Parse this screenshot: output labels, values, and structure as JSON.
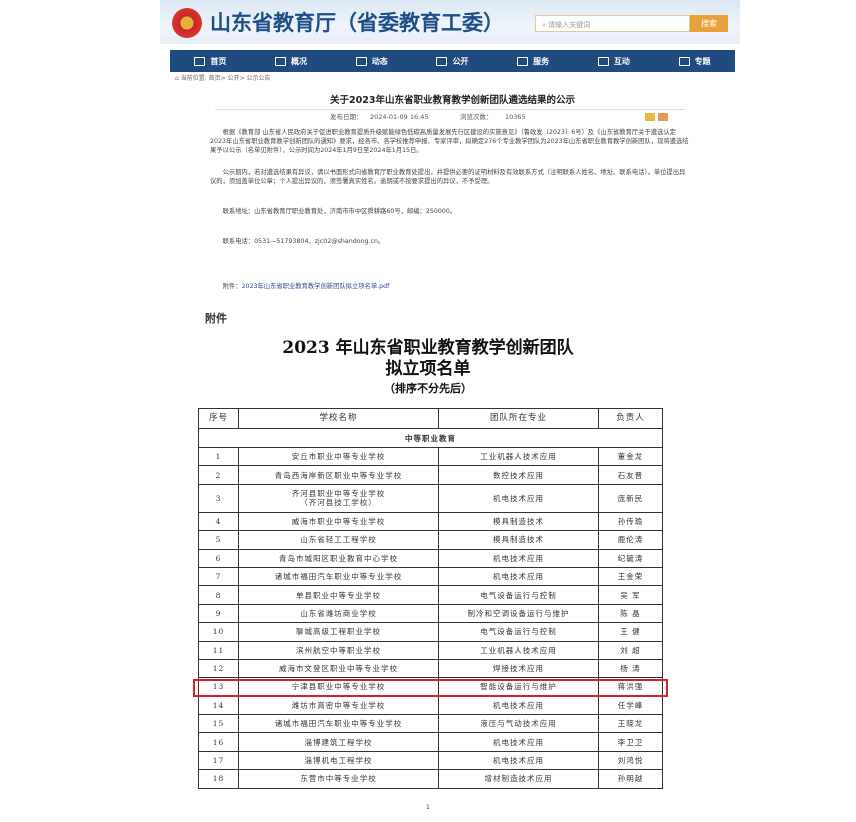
{
  "header": {
    "site_title": "山东省教育厅（省委教育工委）",
    "search_placeholder": "请输入关键词",
    "search_button": "搜索"
  },
  "nav": [
    {
      "label": "首页",
      "icon": "home-icon"
    },
    {
      "label": "概况",
      "icon": "overview-icon"
    },
    {
      "label": "动态",
      "icon": "news-icon"
    },
    {
      "label": "公开",
      "icon": "book-icon"
    },
    {
      "label": "服务",
      "icon": "service-icon"
    },
    {
      "label": "互动",
      "icon": "chat-icon"
    },
    {
      "label": "专题",
      "icon": "topic-icon"
    }
  ],
  "breadcrumb": "当前位置: 首页> 公开> 公示公告",
  "article": {
    "title": "关于2023年山东省职业教育教学创新团队遴选结果的公示",
    "date_label": "发布日期：",
    "date": "2024-01-09 16:45",
    "views_label": "浏览次数：",
    "views": "10365",
    "p1": "根据《教育部 山东省人民政府关于促进职业教育提质升级赋能绿色低碳高质量发展先行区建设的实施意见》（鲁政发〔2023〕6号）及《山东省教育厅关于遴选认定2023年山东省职业教育教学创新团队的通知》要求，经各市、各学校推荐申报、专家评审，拟确定276个专业教学团队为2023年山东省职业教育教学创新团队，现将遴选结果予以公示（名单见附件），公示时间为2024年1月9日至2024年1月15日。",
    "p2": "公示期内，若对遴选结果有异议，请以书面形式向省教育厅职业教育处提出，并提供必要的证明材料及有效联系方式（注明联系人姓名、地址、联系电话）。单位提出异议的，须加盖单位公章；个人提出异议的，须签署真实姓名。逾期或不按要求提出的异议，不予受理。",
    "address": "联系地址：山东省教育厅职业教育处，济南市市中区舜耕路60号，邮编：250000。",
    "phone": "联系电话：0531—51793804，zjc02@shandong.cn。",
    "attachment_label": "附件：",
    "attachment_link": "2023年山东省职业教育教学创新团队拟立项名单.pdf"
  },
  "doc": {
    "attachment_heading": "附件",
    "title1": "2023 年山东省职业教育教学创新团队",
    "title2": "拟立项名单",
    "subtitle": "（排序不分先后）",
    "columns": [
      "序号",
      "学校名称",
      "团队所在专业",
      "负责人"
    ],
    "section": "中等职业教育",
    "rows": [
      [
        "1",
        "安丘市职业中等专业学校",
        "工业机器人技术应用",
        "董金龙"
      ],
      [
        "2",
        "青岛西海岸新区职业中等专业学校",
        "数控技术应用",
        "石友晋"
      ],
      [
        "3",
        "齐河县职业中等专业学校\n（齐河县技工学校）",
        "机电技术应用",
        "庞新民"
      ],
      [
        "4",
        "威海市职业中等专业学校",
        "模具制造技术",
        "孙传瑜"
      ],
      [
        "5",
        "山东省轻工工程学校",
        "模具制造技术",
        "鹿伦涛"
      ],
      [
        "6",
        "青岛市城阳区职业教育中心学校",
        "机电技术应用",
        "纪毓涛"
      ],
      [
        "7",
        "诸城市福田汽车职业中等专业学校",
        "机电技术应用",
        "王金荣"
      ],
      [
        "8",
        "单县职业中等专业学校",
        "电气设备运行与控制",
        "吴 军"
      ],
      [
        "9",
        "山东省潍坊商业学校",
        "制冷和空调设备运行与维护",
        "陈 晶"
      ],
      [
        "10",
        "聊城高级工程职业学校",
        "电气设备运行与控制",
        "王 健"
      ],
      [
        "11",
        "滨州航空中等职业学校",
        "工业机器人技术应用",
        "刘 超"
      ],
      [
        "12",
        "威海市文登区职业中等专业学校",
        "焊接技术应用",
        "杨 涛"
      ],
      [
        "13",
        "宁津县职业中等专业学校",
        "智能设备运行与维护",
        "蒋洪强"
      ],
      [
        "14",
        "潍坊市高密中等专业学校",
        "机电技术应用",
        "任学峰"
      ],
      [
        "15",
        "诸城市福田汽车职业中等专业学校",
        "液压与气动技术应用",
        "王晓龙"
      ],
      [
        "16",
        "淄博建筑工程学校",
        "机电技术应用",
        "李卫卫"
      ],
      [
        "17",
        "淄博机电工程学校",
        "机电技术应用",
        "刘鸿悦"
      ],
      [
        "18",
        "东营市中等专业学校",
        "增材制造技术应用",
        "孙明越"
      ]
    ],
    "highlighted_row": "13",
    "highlight_color": "#d91f26",
    "page_number": "1"
  }
}
